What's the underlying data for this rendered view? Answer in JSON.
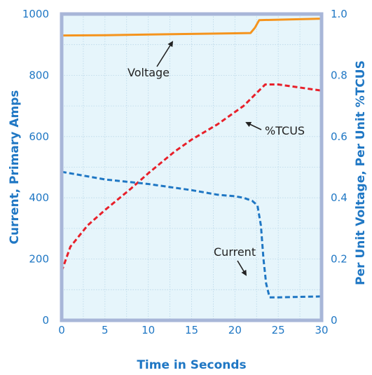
{
  "chart_data": {
    "type": "line",
    "title": "",
    "xlabel": "Time in Seconds",
    "ylabel_left": "Current, Primary Amps",
    "ylabel_right": "Per Unit Voltage, Per Unit %TCUS",
    "xlim": [
      0,
      30
    ],
    "ylim_left": [
      0,
      1000
    ],
    "ylim_right": [
      0,
      1.0
    ],
    "x_ticks": [
      "0",
      "5",
      "10",
      "15",
      "20",
      "25",
      "30"
    ],
    "y_left_ticks": [
      "0",
      "200",
      "400",
      "600",
      "800",
      "1000"
    ],
    "y_right_ticks": [
      "0",
      "0.2",
      "0.4",
      "0.6",
      "0.8",
      "1.0"
    ],
    "grid": true,
    "colors": {
      "axis_text": "#1f77c4",
      "frame": "#a8b6d8",
      "grid": "#b8d6e8",
      "plot_bg": "#e6f5fb",
      "voltage": "#f5941d",
      "current": "#1f77c4",
      "tcus": "#e8202a"
    },
    "series": [
      {
        "name": "Voltage",
        "axis": "right",
        "style": "solid",
        "x": [
          0,
          5,
          10,
          15,
          20,
          21.8,
          22.3,
          22.8,
          30
        ],
        "y": [
          0.93,
          0.931,
          0.933,
          0.935,
          0.937,
          0.938,
          0.955,
          0.98,
          0.985
        ]
      },
      {
        "name": "%TCUS",
        "axis": "right",
        "style": "dashed",
        "x": [
          0,
          1,
          3,
          5,
          8,
          10,
          13,
          15,
          18,
          21,
          23.5,
          25,
          30
        ],
        "y": [
          0.16,
          0.24,
          0.31,
          0.36,
          0.43,
          0.48,
          0.55,
          0.59,
          0.64,
          0.7,
          0.77,
          0.77,
          0.75
        ]
      },
      {
        "name": "Current",
        "axis": "left",
        "style": "dashed",
        "x": [
          0,
          3,
          5,
          10,
          15,
          18,
          20,
          21,
          22,
          22.6,
          23,
          23.3,
          23.6,
          24,
          25,
          30
        ],
        "y": [
          485,
          470,
          460,
          445,
          425,
          410,
          405,
          400,
          390,
          375,
          310,
          200,
          120,
          75,
          75,
          78
        ]
      }
    ],
    "annotations": [
      {
        "text": "Voltage",
        "series": "Voltage"
      },
      {
        "text": "%TCUS",
        "series": "%TCUS"
      },
      {
        "text": "Current",
        "series": "Current"
      }
    ]
  }
}
